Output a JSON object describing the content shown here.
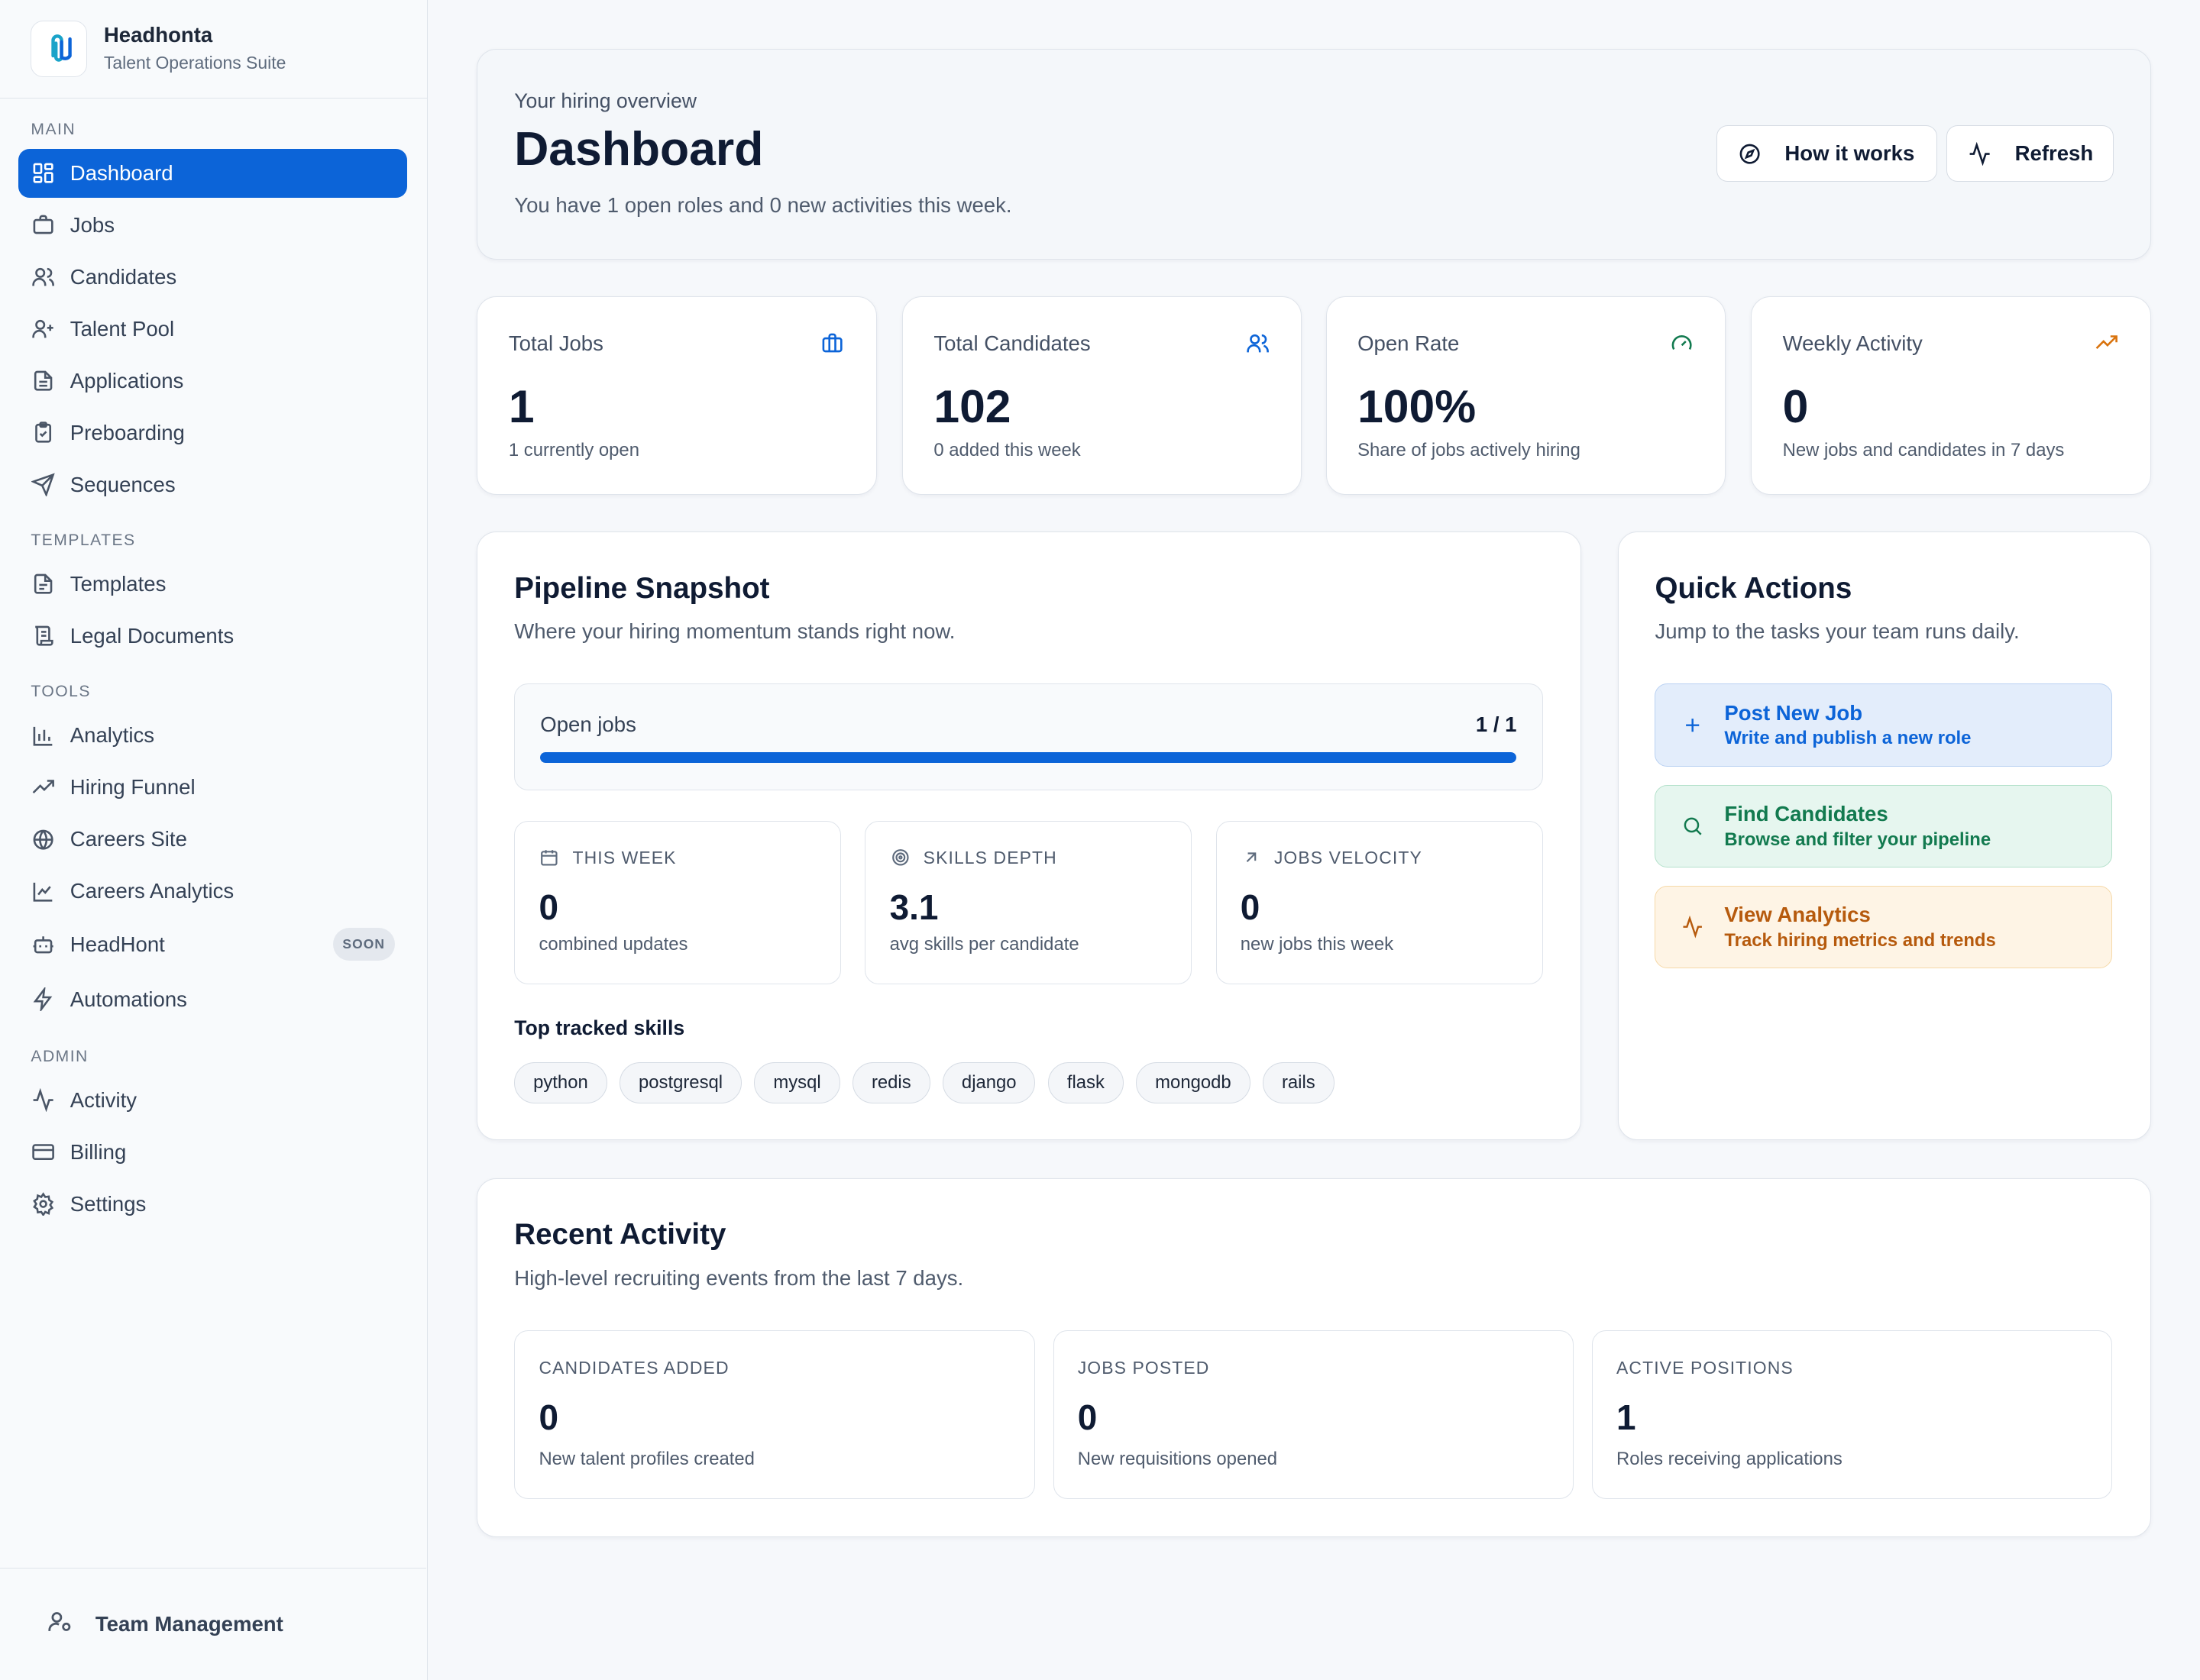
{
  "brand": {
    "name": "Headhonta",
    "subtitle": "Talent Operations Suite"
  },
  "sidebar": {
    "sections": [
      {
        "label": "MAIN",
        "items": [
          {
            "label": "Dashboard",
            "icon": "dashboard-grid-icon",
            "active": true
          },
          {
            "label": "Jobs",
            "icon": "briefcase-icon"
          },
          {
            "label": "Candidates",
            "icon": "users-icon"
          },
          {
            "label": "Talent Pool",
            "icon": "user-plus-icon"
          },
          {
            "label": "Applications",
            "icon": "document-icon"
          },
          {
            "label": "Preboarding",
            "icon": "clipboard-check-icon"
          },
          {
            "label": "Sequences",
            "icon": "send-icon"
          }
        ]
      },
      {
        "label": "TEMPLATES",
        "items": [
          {
            "label": "Templates",
            "icon": "file-text-icon"
          },
          {
            "label": "Legal Documents",
            "icon": "scroll-icon"
          }
        ]
      },
      {
        "label": "TOOLS",
        "items": [
          {
            "label": "Analytics",
            "icon": "bar-chart-icon"
          },
          {
            "label": "Hiring Funnel",
            "icon": "trending-up-icon"
          },
          {
            "label": "Careers Site",
            "icon": "globe-icon"
          },
          {
            "label": "Careers Analytics",
            "icon": "line-chart-icon"
          },
          {
            "label": "HeadHont",
            "icon": "bot-icon",
            "badge": "SOON"
          },
          {
            "label": "Automations",
            "icon": "zap-icon"
          }
        ]
      },
      {
        "label": "ADMIN",
        "items": [
          {
            "label": "Activity",
            "icon": "activity-icon"
          },
          {
            "label": "Billing",
            "icon": "credit-card-icon"
          },
          {
            "label": "Settings",
            "icon": "gear-icon"
          }
        ]
      }
    ],
    "footer": {
      "label": "Team Management",
      "icon": "user-cog-icon"
    }
  },
  "header": {
    "eyebrow": "Your hiring overview",
    "title": "Dashboard",
    "subtitle": "You have 1 open roles and 0 new activities this week.",
    "how_label": "How it works",
    "refresh_label": "Refresh"
  },
  "stats": [
    {
      "label": "Total Jobs",
      "value": "1",
      "note": "1 currently open",
      "icon": "briefcase-icon",
      "color": "#0c64d8"
    },
    {
      "label": "Total Candidates",
      "value": "102",
      "note": "0 added this week",
      "icon": "users-icon",
      "color": "#0c64d8"
    },
    {
      "label": "Open Rate",
      "value": "100%",
      "note": "Share of jobs actively hiring",
      "icon": "gauge-icon",
      "color": "#127a4f"
    },
    {
      "label": "Weekly Activity",
      "value": "0",
      "note": "New jobs and candidates in 7 days",
      "icon": "trending-up-icon",
      "color": "#d9730d"
    }
  ],
  "pipeline": {
    "title": "Pipeline Snapshot",
    "subtitle": "Where your hiring momentum stands right now.",
    "open_jobs_label": "Open jobs",
    "open_jobs_count": "1 / 1",
    "open_jobs_fraction": 1.0,
    "metrics": [
      {
        "label": "THIS WEEK",
        "value": "0",
        "note": "combined updates",
        "icon": "calendar-icon"
      },
      {
        "label": "SKILLS DEPTH",
        "value": "3.1",
        "note": "avg skills per candidate",
        "icon": "target-icon"
      },
      {
        "label": "JOBS VELOCITY",
        "value": "0",
        "note": "new jobs this week",
        "icon": "arrow-up-right-icon"
      }
    ],
    "skills_title": "Top tracked skills",
    "skills": [
      "python",
      "postgresql",
      "mysql",
      "redis",
      "django",
      "flask",
      "mongodb",
      "rails"
    ]
  },
  "quick_actions": {
    "title": "Quick Actions",
    "subtitle": "Jump to the tasks your team runs daily.",
    "items": [
      {
        "title": "Post New Job",
        "subtitle": "Write and publish a new role",
        "icon": "plus-icon"
      },
      {
        "title": "Find Candidates",
        "subtitle": "Browse and filter your pipeline",
        "icon": "search-icon"
      },
      {
        "title": "View Analytics",
        "subtitle": "Track hiring metrics and trends",
        "icon": "activity-icon"
      }
    ]
  },
  "recent": {
    "title": "Recent Activity",
    "subtitle": "High-level recruiting events from the last 7 days.",
    "items": [
      {
        "label": "CANDIDATES ADDED",
        "value": "0",
        "note": "New talent profiles created"
      },
      {
        "label": "JOBS POSTED",
        "value": "0",
        "note": "New requisitions opened"
      },
      {
        "label": "ACTIVE POSITIONS",
        "value": "1",
        "note": "Roles receiving applications"
      }
    ]
  },
  "colors": {
    "accent": "#0c64d8",
    "success": "#127a4f",
    "warning": "#b65a0d"
  }
}
